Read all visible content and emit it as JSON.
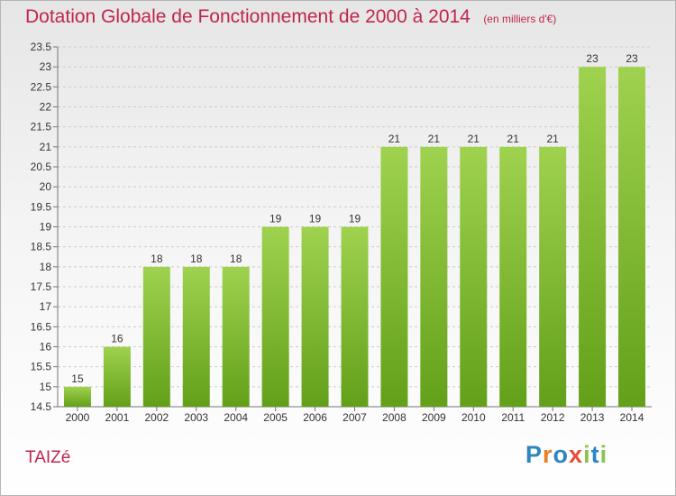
{
  "header": {
    "title": "Dotation Globale de Fonctionnement de 2000 à 2014",
    "unit_note": "(en milliers d'€)"
  },
  "footer": {
    "commune": "TAIZé",
    "logo_letters": [
      {
        "char": "P",
        "color": "#2e86c1"
      },
      {
        "char": "r",
        "color": "#e67e22"
      },
      {
        "char": "o",
        "color": "#2e86c1"
      },
      {
        "char": "x",
        "color": "#e74c3c"
      },
      {
        "char": "i",
        "color": "#8bc34a"
      },
      {
        "char": "t",
        "color": "#2e86c1"
      },
      {
        "char": "i",
        "color": "#8bc34a"
      }
    ]
  },
  "colors": {
    "bar_light": "#9fd24f",
    "bar_dark": "#63a019",
    "text_accent": "#c0254d",
    "grid": "#cccccc"
  },
  "chart_data": {
    "type": "bar",
    "categories": [
      "2000",
      "2001",
      "2002",
      "2003",
      "2004",
      "2005",
      "2006",
      "2007",
      "2008",
      "2009",
      "2010",
      "2011",
      "2012",
      "2013",
      "2014"
    ],
    "values": [
      15,
      16,
      18,
      18,
      18,
      19,
      19,
      19,
      21,
      21,
      21,
      21,
      21,
      23,
      23
    ],
    "ylim": [
      14.5,
      23.5
    ],
    "yticks": [
      "14.5",
      "15",
      "15.5",
      "16",
      "16.5",
      "17",
      "17.5",
      "18",
      "18.5",
      "19",
      "19.5",
      "20",
      "20.5",
      "21",
      "21.5",
      "22",
      "22.5",
      "23",
      "23.5"
    ],
    "grid": true,
    "xlabel": "",
    "ylabel": ""
  }
}
